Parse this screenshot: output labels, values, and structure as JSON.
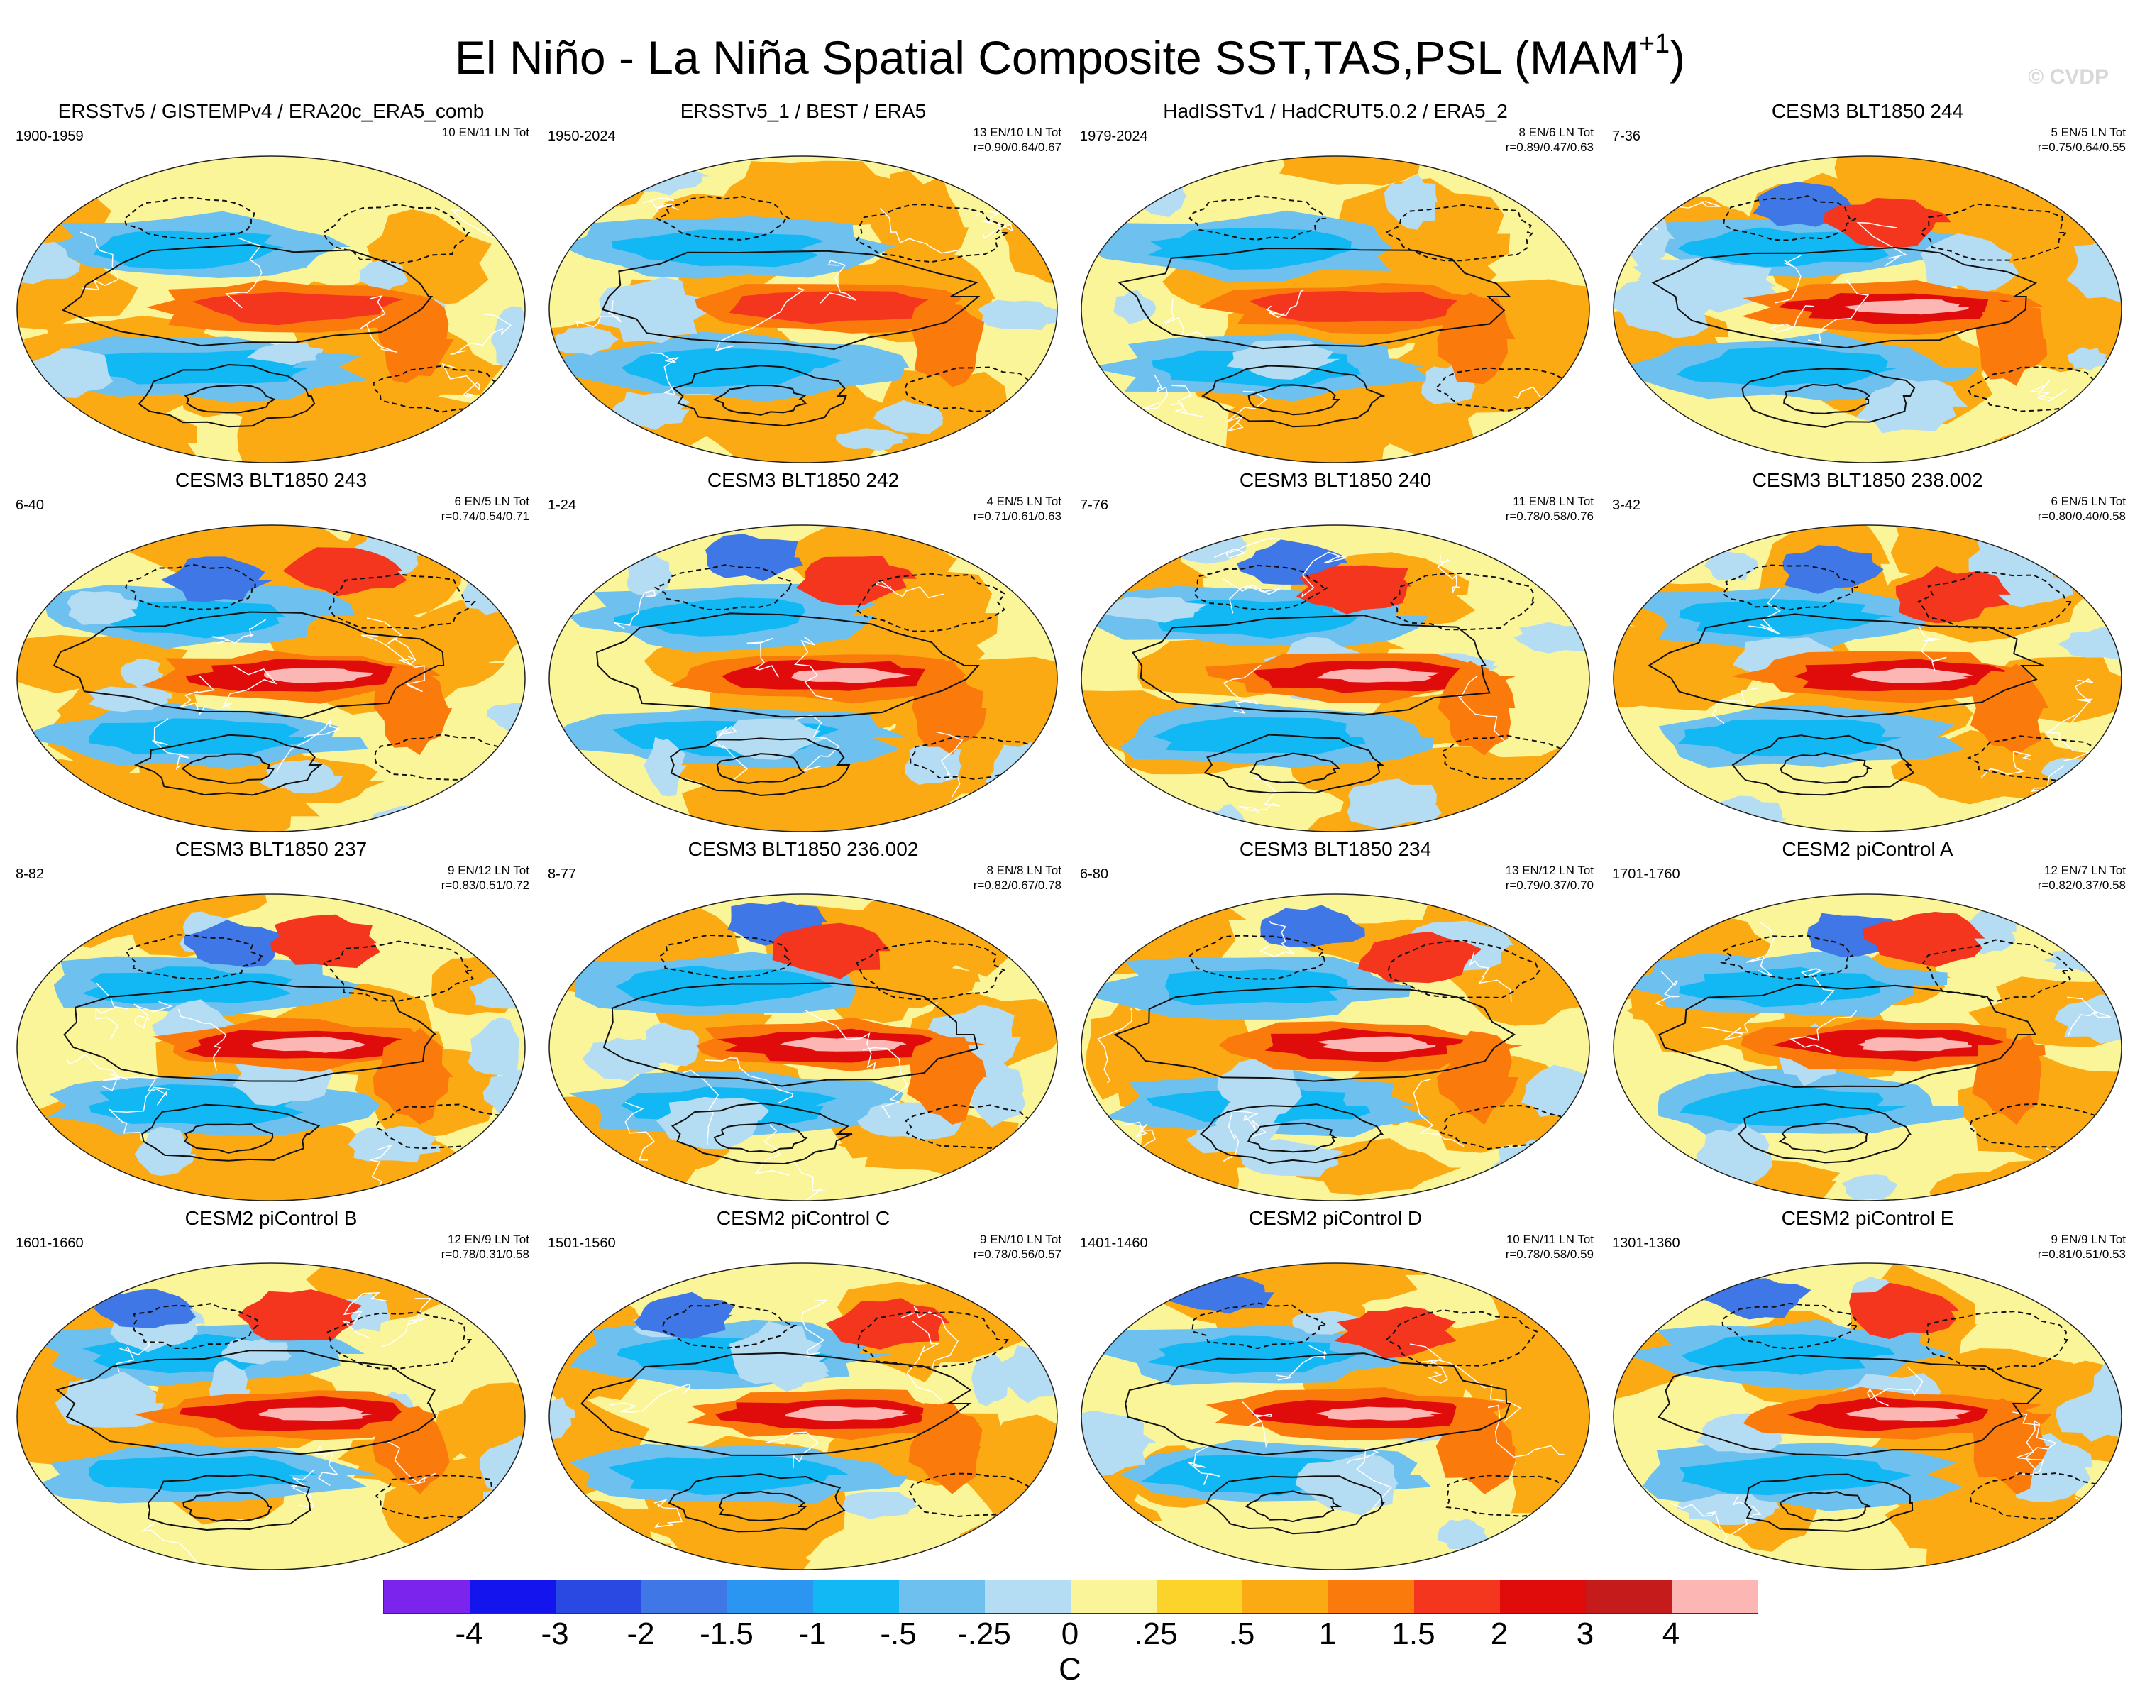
{
  "title": {
    "main": "El Niño - La Niña Spatial Composite SST,TAS,PSL (MAM",
    "superscript": "+1",
    "close": ")"
  },
  "watermark": "© CVDP",
  "panels": [
    {
      "title": "ERSSTv5 / GISTEMPv4 / ERA20c_ERA5_comb",
      "years": "1900-1959",
      "stats1": "10 EN/11 LN Tot",
      "stats2": ""
    },
    {
      "title": "ERSSTv5_1 / BEST / ERA5",
      "years": "1950-2024",
      "stats1": "13 EN/10 LN Tot",
      "stats2": "r=0.90/0.64/0.67"
    },
    {
      "title": "HadISSTv1 / HadCRUT5.0.2 / ERA5_2",
      "years": "1979-2024",
      "stats1": "8 EN/6 LN Tot",
      "stats2": "r=0.89/0.47/0.63"
    },
    {
      "title": "CESM3 BLT1850 244",
      "years": "7-36",
      "stats1": "5 EN/5 LN Tot",
      "stats2": "r=0.75/0.64/0.55"
    },
    {
      "title": "CESM3 BLT1850 243",
      "years": "6-40",
      "stats1": "6 EN/5 LN Tot",
      "stats2": "r=0.74/0.54/0.71"
    },
    {
      "title": "CESM3 BLT1850 242",
      "years": "1-24",
      "stats1": "4 EN/5 LN Tot",
      "stats2": "r=0.71/0.61/0.63"
    },
    {
      "title": "CESM3 BLT1850 240",
      "years": "7-76",
      "stats1": "11 EN/8 LN Tot",
      "stats2": "r=0.78/0.58/0.76"
    },
    {
      "title": "CESM3 BLT1850 238.002",
      "years": "3-42",
      "stats1": "6 EN/5 LN Tot",
      "stats2": "r=0.80/0.40/0.58"
    },
    {
      "title": "CESM3 BLT1850 237",
      "years": "8-82",
      "stats1": "9 EN/12 LN Tot",
      "stats2": "r=0.83/0.51/0.72"
    },
    {
      "title": "CESM3 BLT1850 236.002",
      "years": "8-77",
      "stats1": "8 EN/8 LN Tot",
      "stats2": "r=0.82/0.67/0.78"
    },
    {
      "title": "CESM3 BLT1850 234",
      "years": "6-80",
      "stats1": "13 EN/12 LN Tot",
      "stats2": "r=0.79/0.37/0.70"
    },
    {
      "title": "CESM2 piControl A",
      "years": "1701-1760",
      "stats1": "12 EN/7 LN Tot",
      "stats2": "r=0.82/0.37/0.58"
    },
    {
      "title": "CESM2 piControl B",
      "years": "1601-1660",
      "stats1": "12 EN/9 LN Tot",
      "stats2": "r=0.78/0.31/0.58"
    },
    {
      "title": "CESM2 piControl C",
      "years": "1501-1560",
      "stats1": "9 EN/10 LN Tot",
      "stats2": "r=0.78/0.56/0.57"
    },
    {
      "title": "CESM2 piControl D",
      "years": "1401-1460",
      "stats1": "10 EN/11 LN Tot",
      "stats2": "r=0.78/0.58/0.59"
    },
    {
      "title": "CESM2 piControl E",
      "years": "1301-1360",
      "stats1": "9 EN/9 LN Tot",
      "stats2": "r=0.81/0.51/0.53"
    }
  ],
  "colorbar": {
    "colors": [
      "#7a24ee",
      "#1414ee",
      "#2a48e2",
      "#3f78e6",
      "#2a96f2",
      "#12b8f4",
      "#6ec0ee",
      "#b4dcf2",
      "#fbf59a",
      "#fcd32a",
      "#fbaa14",
      "#fb7a0c",
      "#f4361e",
      "#e00c0c",
      "#c51b1b",
      "#fcb6b4"
    ],
    "labels": [
      "-4",
      "-3",
      "-2",
      "-1.5",
      "-1",
      "-.5",
      "-.25",
      "0",
      ".25",
      ".5",
      "1",
      "1.5",
      "2",
      "3",
      "4"
    ],
    "units": "C"
  },
  "map_style": {
    "ocean_base": "#fbf59a",
    "coast": "#ffffff",
    "contour": "#111111"
  }
}
